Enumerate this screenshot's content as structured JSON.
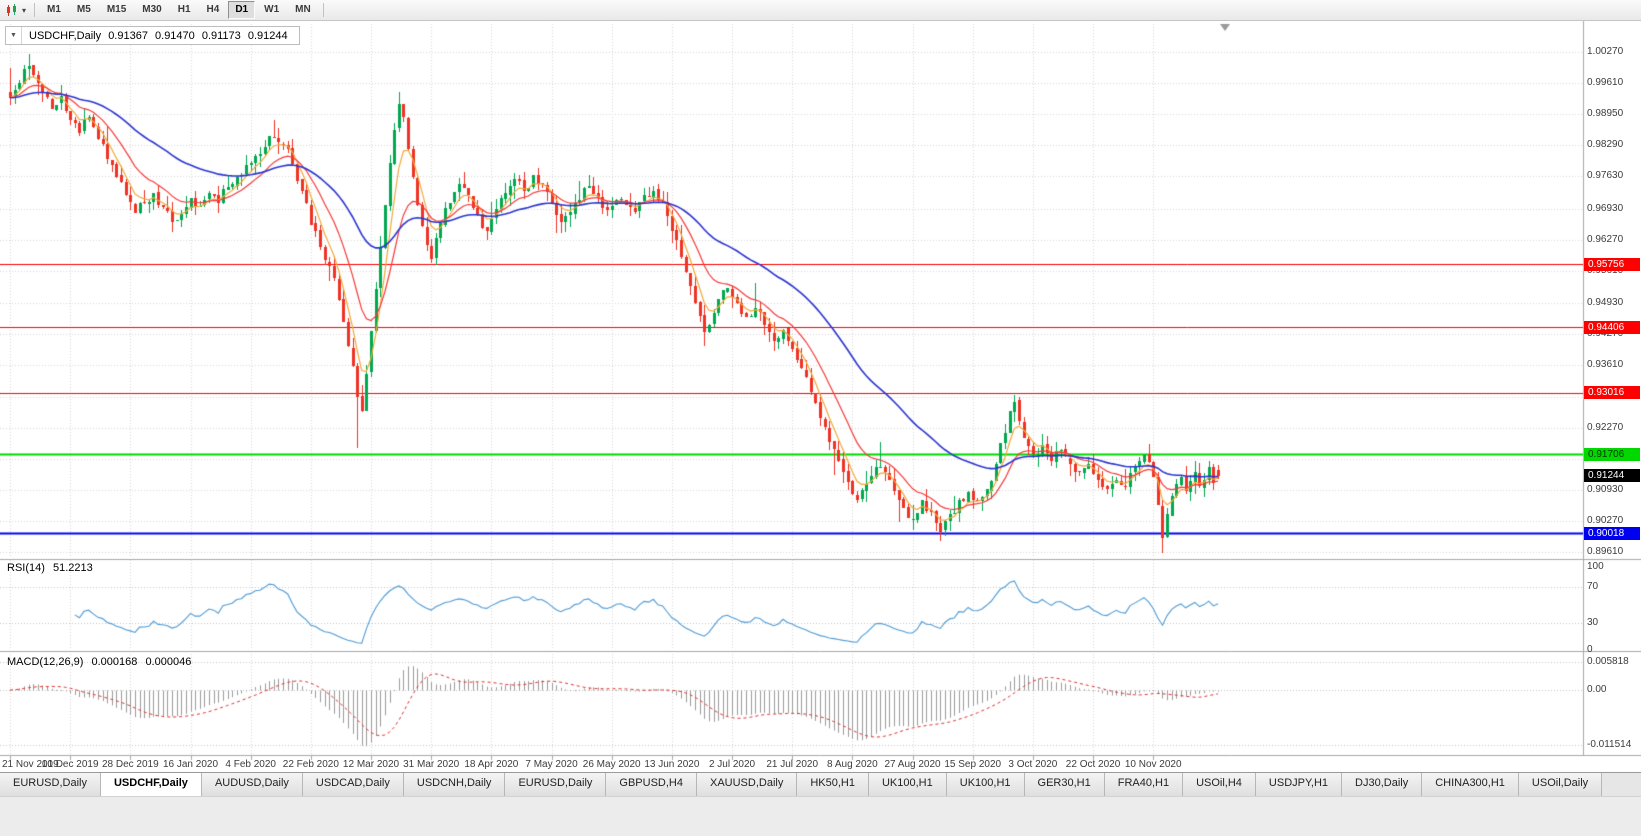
{
  "icons": {
    "toolbar_caret": "▾",
    "symbol_caret": "▼"
  },
  "toolbar": {
    "timeframes": [
      "M1",
      "M5",
      "M15",
      "M30",
      "H1",
      "H4",
      "D1",
      "W1",
      "MN"
    ],
    "active_timeframe": "D1"
  },
  "chart": {
    "header": {
      "symbol": "USDCHF,Daily",
      "open": "0.91367",
      "high": "0.91470",
      "low": "0.91173",
      "close": "0.91244"
    },
    "price_axis": {
      "min": 0.89489,
      "max": 1.00873,
      "labels": [
        "1.00270",
        "0.99610",
        "0.98950",
        "0.98290",
        "0.97630",
        "0.96930",
        "0.96270",
        "0.95610",
        "0.94930",
        "0.94270",
        "0.93610",
        "0.92930",
        "0.92270",
        "0.91610",
        "0.90930",
        "0.90270",
        "0.89610"
      ]
    },
    "hlines": [
      {
        "label": "0.95756",
        "price": 0.95756,
        "color": "#fe0000",
        "width": 1,
        "badge_bg": "#fe0000",
        "badge_fg": "#ffffff"
      },
      {
        "label": "0.94406",
        "price": 0.94406,
        "color": "#fe0000",
        "width": 1,
        "badge_bg": "#fe0000",
        "badge_fg": "#ffffff"
      },
      {
        "label": "0.93016",
        "price": 0.93016,
        "color": "#fe0000",
        "width": 1,
        "badge_bg": "#fe0000",
        "badge_fg": "#ffffff"
      },
      {
        "label": "0.91706",
        "price": 0.91706,
        "color": "#00d800",
        "width": 2,
        "badge_bg": "#00d800",
        "badge_fg": "#003300"
      },
      {
        "label": "0.90018",
        "price": 0.90018,
        "color": "#0000f0",
        "width": 2,
        "badge_bg": "#0000f0",
        "badge_fg": "#ffffff"
      }
    ],
    "current_price": {
      "label": "0.91244",
      "price": 0.91244,
      "badge_bg": "#000000",
      "badge_fg": "#ffffff"
    },
    "date_axis": [
      "21 Nov 2019",
      "10 Dec 2019",
      "28 Dec 2019",
      "16 Jan 2020",
      "4 Feb 2020",
      "22 Feb 2020",
      "12 Mar 2020",
      "31 Mar 2020",
      "18 Apr 2020",
      "7 May 2020",
      "26 May 2020",
      "13 Jun 2020",
      "2 Jul 2020",
      "21 Jul 2020",
      "8 Aug 2020",
      "27 Aug 2020",
      "15 Sep 2020",
      "3 Oct 2020",
      "22 Oct 2020",
      "10 Nov 2020"
    ]
  },
  "rsi": {
    "name": "RSI(14)",
    "value": "51.2213",
    "scale": [
      {
        "text": "100",
        "value": 100
      },
      {
        "text": "70",
        "value": 70
      },
      {
        "text": "30",
        "value": 30
      },
      {
        "text": "0",
        "value": 0
      }
    ],
    "levels": [
      70,
      30
    ]
  },
  "macd": {
    "name": "MACD(12,26,9)",
    "value1": "0.000168",
    "value2": "0.000046",
    "scale": [
      {
        "text": "0.005818",
        "value": 0.005818
      },
      {
        "text": "0.00",
        "value": 0
      },
      {
        "text": "-0.011514",
        "value": -0.011514
      }
    ],
    "ymin": -0.01336,
    "ymax": 0.00752
  },
  "tabs": {
    "active_index": 1,
    "items": [
      "EURUSD,Daily",
      "USDCHF,Daily",
      "AUDUSD,Daily",
      "USDCAD,Daily",
      "USDCNH,Daily",
      "EURUSD,Daily",
      "GBPUSD,H4",
      "XAUUSD,Daily",
      "HK50,H1",
      "UK100,H1",
      "UK100,H1",
      "GER30,H1",
      "FRA40,H1",
      "USOil,H4",
      "USDJPY,H1",
      "DJ30,Daily",
      "CHINA300,H1",
      "USOil,Daily"
    ]
  },
  "chart_data": {
    "type": "candlestick",
    "symbol": "USDCHF",
    "timeframe": "Daily",
    "displayed_ohlc": {
      "open": 0.91367,
      "high": 0.9147,
      "low": 0.91173,
      "close": 0.91244
    },
    "candles_count": 262,
    "price_range_visible": [
      0.89489,
      1.00873
    ],
    "horizontal_levels": [
      0.95756,
      0.94406,
      0.93016,
      0.91706,
      0.90018
    ],
    "rsi_period": 14,
    "rsi_last": 51.2213,
    "macd_params": [
      12,
      26,
      9
    ],
    "macd_last": [
      0.000168,
      4.6e-05
    ],
    "colors": {
      "up": "#00a84f",
      "down": "#ee3224",
      "rsi_line": "#4f9bd6",
      "macd_histogram": "#9c9c9c",
      "macd_signal": "#e03131",
      "grid": "#d9d9d9"
    },
    "moving_averages": [
      {
        "period": 5,
        "color": "#f2a93b",
        "width": 1.2
      },
      {
        "period": 13,
        "color": "#f53b3b",
        "width": 1.2
      },
      {
        "period": 40,
        "color": "#2b35cf",
        "width": 1.6
      }
    ],
    "anchors": [
      [
        0,
        0.993
      ],
      [
        2,
        0.9962
      ],
      [
        4,
        0.9998
      ],
      [
        5,
        0.9978
      ],
      [
        7,
        0.9942
      ],
      [
        9,
        0.9906
      ],
      [
        11,
        0.9934
      ],
      [
        13,
        0.9882
      ],
      [
        15,
        0.9856
      ],
      [
        17,
        0.989
      ],
      [
        19,
        0.9842
      ],
      [
        21,
        0.98
      ],
      [
        23,
        0.9762
      ],
      [
        25,
        0.9722
      ],
      [
        27,
        0.9686
      ],
      [
        29,
        0.9706
      ],
      [
        31,
        0.9726
      ],
      [
        33,
        0.9696
      ],
      [
        35,
        0.9666
      ],
      [
        37,
        0.9682
      ],
      [
        39,
        0.9716
      ],
      [
        41,
        0.97
      ],
      [
        43,
        0.9726
      ],
      [
        45,
        0.9706
      ],
      [
        47,
        0.974
      ],
      [
        49,
        0.9762
      ],
      [
        51,
        0.9786
      ],
      [
        53,
        0.9806
      ],
      [
        55,
        0.9826
      ],
      [
        57,
        0.9846
      ],
      [
        59,
        0.983
      ],
      [
        61,
        0.979
      ],
      [
        63,
        0.973
      ],
      [
        65,
        0.966
      ],
      [
        67,
        0.9612
      ],
      [
        69,
        0.9572
      ],
      [
        71,
        0.95
      ],
      [
        73,
        0.94
      ],
      [
        75,
        0.9292
      ],
      [
        76,
        0.9262
      ],
      [
        77,
        0.9342
      ],
      [
        78,
        0.9432
      ],
      [
        79,
        0.9522
      ],
      [
        80,
        0.9612
      ],
      [
        81,
        0.9702
      ],
      [
        82,
        0.9792
      ],
      [
        83,
        0.9862
      ],
      [
        84,
        0.9916
      ],
      [
        85,
        0.989
      ],
      [
        86,
        0.9822
      ],
      [
        87,
        0.9762
      ],
      [
        88,
        0.9702
      ],
      [
        89,
        0.9656
      ],
      [
        90,
        0.9616
      ],
      [
        91,
        0.9586
      ],
      [
        92,
        0.9632
      ],
      [
        93,
        0.9662
      ],
      [
        95,
        0.9706
      ],
      [
        97,
        0.9746
      ],
      [
        99,
        0.9722
      ],
      [
        101,
        0.9682
      ],
      [
        103,
        0.9646
      ],
      [
        105,
        0.9692
      ],
      [
        107,
        0.9726
      ],
      [
        109,
        0.9756
      ],
      [
        111,
        0.9732
      ],
      [
        113,
        0.9766
      ],
      [
        115,
        0.9746
      ],
      [
        117,
        0.9706
      ],
      [
        119,
        0.9666
      ],
      [
        121,
        0.9686
      ],
      [
        123,
        0.9712
      ],
      [
        125,
        0.9742
      ],
      [
        127,
        0.9716
      ],
      [
        129,
        0.9692
      ],
      [
        131,
        0.9712
      ],
      [
        133,
        0.9702
      ],
      [
        135,
        0.9686
      ],
      [
        137,
        0.9722
      ],
      [
        139,
        0.9732
      ],
      [
        141,
        0.9706
      ],
      [
        143,
        0.9645
      ],
      [
        145,
        0.959
      ],
      [
        147,
        0.953
      ],
      [
        149,
        0.9465
      ],
      [
        150,
        0.943
      ],
      [
        151,
        0.9445
      ],
      [
        153,
        0.95
      ],
      [
        155,
        0.9525
      ],
      [
        157,
        0.9492
      ],
      [
        159,
        0.9462
      ],
      [
        161,
        0.9482
      ],
      [
        163,
        0.9446
      ],
      [
        165,
        0.9412
      ],
      [
        167,
        0.9436
      ],
      [
        169,
        0.9396
      ],
      [
        171,
        0.9352
      ],
      [
        173,
        0.9302
      ],
      [
        175,
        0.9246
      ],
      [
        177,
        0.9196
      ],
      [
        179,
        0.9156
      ],
      [
        181,
        0.9112
      ],
      [
        183,
        0.9072
      ],
      [
        185,
        0.9106
      ],
      [
        187,
        0.9142
      ],
      [
        189,
        0.9132
      ],
      [
        191,
        0.9092
      ],
      [
        193,
        0.9056
      ],
      [
        195,
        0.9032
      ],
      [
        197,
        0.9072
      ],
      [
        199,
        0.9046
      ],
      [
        201,
        0.9006
      ],
      [
        203,
        0.9042
      ],
      [
        205,
        0.9072
      ],
      [
        207,
        0.909
      ],
      [
        209,
        0.9072
      ],
      [
        211,
        0.9095
      ],
      [
        213,
        0.915
      ],
      [
        215,
        0.9215
      ],
      [
        216,
        0.9262
      ],
      [
        217,
        0.9282
      ],
      [
        218,
        0.924
      ],
      [
        219,
        0.9205
      ],
      [
        221,
        0.917
      ],
      [
        223,
        0.919
      ],
      [
        225,
        0.9155
      ],
      [
        227,
        0.918
      ],
      [
        229,
        0.915
      ],
      [
        231,
        0.9132
      ],
      [
        233,
        0.915
      ],
      [
        235,
        0.9116
      ],
      [
        237,
        0.9096
      ],
      [
        239,
        0.9116
      ],
      [
        241,
        0.9102
      ],
      [
        243,
        0.9142
      ],
      [
        245,
        0.9168
      ],
      [
        246,
        0.9152
      ],
      [
        247,
        0.9122
      ],
      [
        248,
        0.9062
      ],
      [
        249,
        0.8992
      ],
      [
        250,
        0.9042
      ],
      [
        251,
        0.9082
      ],
      [
        252,
        0.9106
      ],
      [
        253,
        0.9122
      ],
      [
        254,
        0.9092
      ],
      [
        255,
        0.9112
      ],
      [
        256,
        0.9132
      ],
      [
        257,
        0.9102
      ],
      [
        258,
        0.9116
      ],
      [
        259,
        0.9142
      ],
      [
        260,
        0.9108
      ],
      [
        261,
        0.91244
      ]
    ],
    "overrides": {
      "4": {
        "h": 1.0023
      },
      "75": {
        "l": 0.9185
      },
      "150": {
        "l": 0.94
      },
      "217": {
        "h": 0.9296
      },
      "249": {
        "l": 0.896
      },
      "261": {
        "o": 0.91367,
        "h": 0.9147,
        "l": 0.91173,
        "c": 0.91244
      }
    }
  }
}
